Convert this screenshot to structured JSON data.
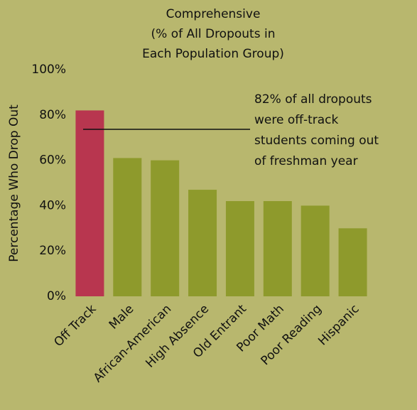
{
  "chart_data": {
    "type": "bar",
    "title": [
      "Comprehensive",
      "(% of All Dropouts in",
      "Each Population Group)"
    ],
    "y_label": "Percentage Who Drop Out",
    "annotation": [
      "82% of all dropouts",
      "were off-track",
      "students coming out",
      "of freshman year"
    ],
    "categories": [
      "Off Track",
      "Male",
      "African-American",
      "High Absence",
      "Old Entrant",
      "Poor Math",
      "Poor Reading",
      "Hispanic"
    ],
    "values": [
      82,
      61,
      60,
      47,
      42,
      42,
      40,
      30
    ],
    "colors": [
      "#b8364f",
      "#8e9a2c",
      "#8e9a2c",
      "#8e9a2c",
      "#8e9a2c",
      "#8e9a2c",
      "#8e9a2c",
      "#8e9a2c"
    ],
    "ylim": [
      0,
      100
    ],
    "yticks": [
      {
        "value": 0,
        "label": "0%"
      },
      {
        "value": 20,
        "label": "20%"
      },
      {
        "value": 40,
        "label": "40%"
      },
      {
        "value": 60,
        "label": "60%"
      },
      {
        "value": 80,
        "label": "80%"
      },
      {
        "value": 100,
        "label": "100%"
      }
    ],
    "grid": false
  }
}
